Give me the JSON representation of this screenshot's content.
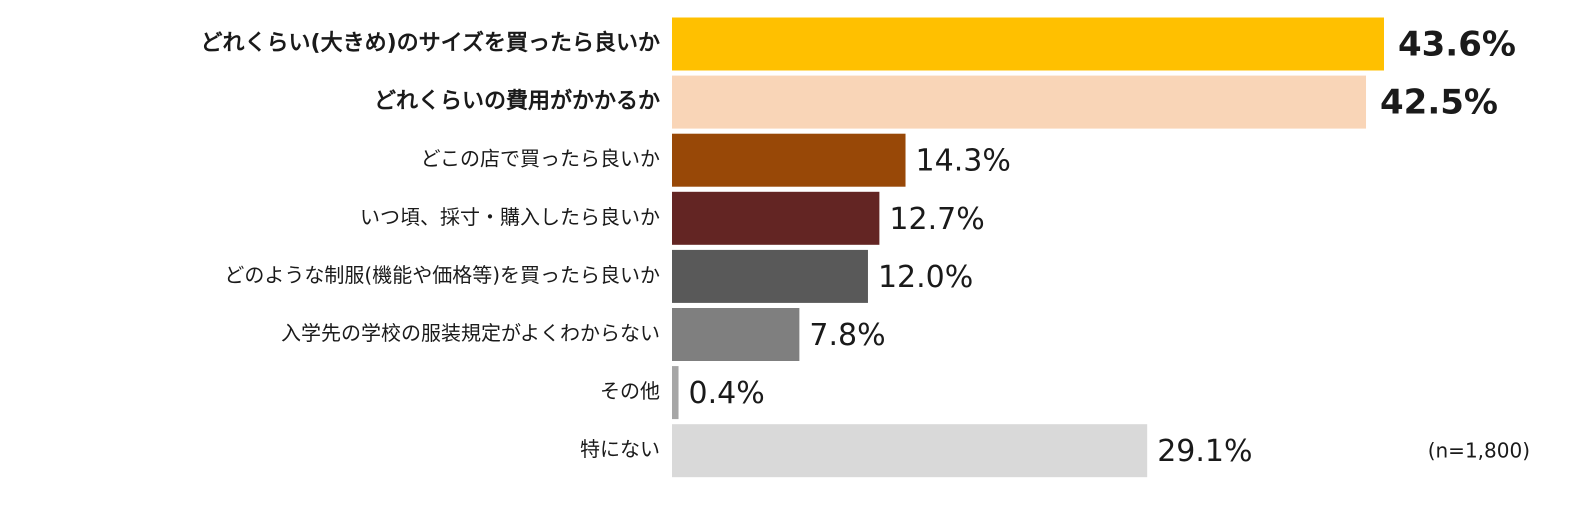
{
  "chart_data": {
    "type": "bar",
    "orientation": "horizontal",
    "categories": [
      "どれくらい(大きめ)のサイズを買ったら良いか",
      "どれくらいの費用がかかるか",
      "どこの店で買ったら良いか",
      "いつ頃、採寸・購入したら良いか",
      "どのような制服(機能や価格等)を買ったら良いか",
      "入学先の学校の服装規定がよくわからない",
      "その他",
      "特にない"
    ],
    "values": [
      43.6,
      42.5,
      14.3,
      12.7,
      12.0,
      7.8,
      0.4,
      29.1
    ],
    "value_labels": [
      "43.6%",
      "42.5%",
      "14.3%",
      "12.7%",
      "12.0%",
      "7.8%",
      "0.4%",
      "29.1%"
    ],
    "colors": [
      "#FFC000",
      "#F9D5B7",
      "#984807",
      "#632523",
      "#595959",
      "#7F7F7F",
      "#A6A6A6",
      "#D9D9D9"
    ],
    "annotation": "(n=1,800)"
  }
}
